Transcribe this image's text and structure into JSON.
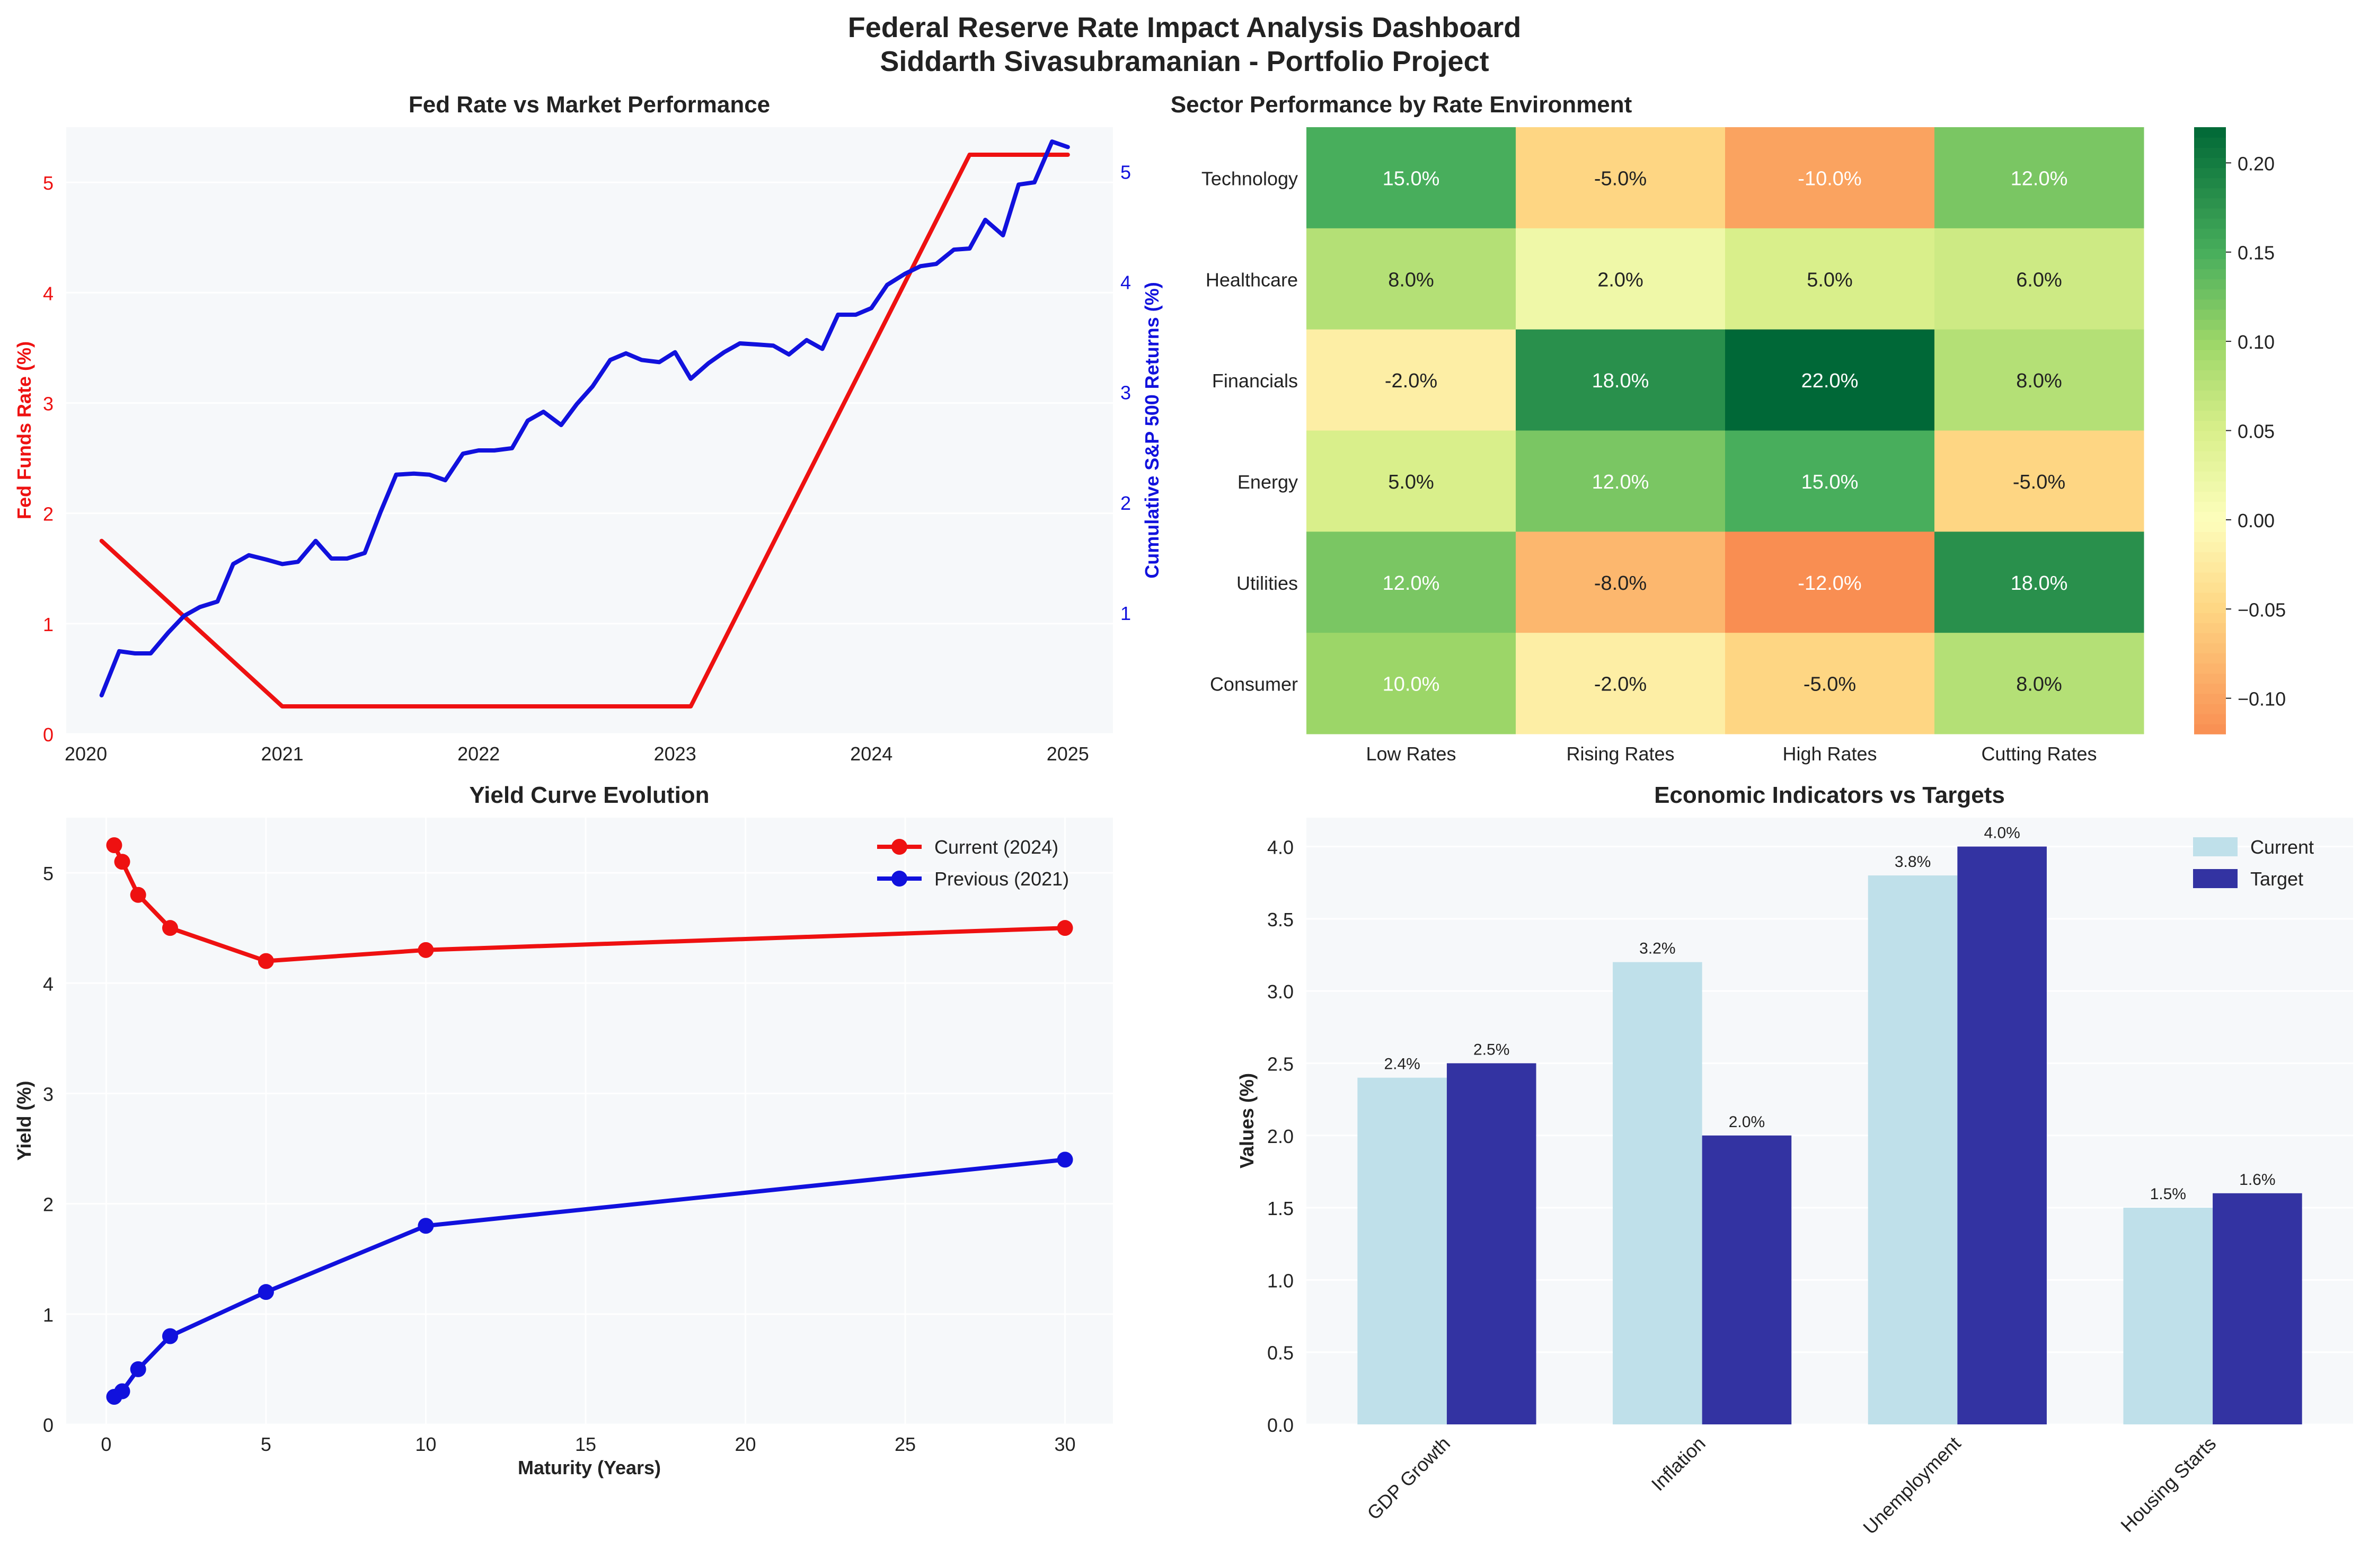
{
  "suptitle": {
    "line1": "Federal Reserve Rate Impact Analysis Dashboard",
    "line2": "Siddarth Sivasubramanian - Portfolio Project"
  },
  "colors": {
    "fed": "#ee1111",
    "sp": "#1111dd",
    "current": "#ee1111",
    "previous": "#1111dd",
    "bar_current": "#bfe0ea",
    "bar_target": "#3333a2",
    "panel_bg": "#f6f8fa",
    "grid": "#ffffff",
    "heat_low": "#f98e52",
    "heat_mid": "#fdfebc",
    "heat_high": "#006837"
  },
  "chart_data": [
    {
      "id": "fed-vs-market",
      "type": "line",
      "title": "Fed Rate vs Market Performance",
      "xlabel": "",
      "ylabel_left": "Fed Funds Rate (%)",
      "ylabel_right": "Cumulative S&P 500 Returns (%)",
      "xlim": [
        2019.9,
        2025.23
      ],
      "ylim_left": [
        0,
        5.5
      ],
      "ylim_right": [
        -0.1,
        5.4
      ],
      "xticks": [
        2020,
        2021,
        2022,
        2023,
        2024,
        2025
      ],
      "xtick_labels": [
        "2020",
        "2021",
        "2022",
        "2023",
        "2024",
        "2025"
      ],
      "yticks_left": [
        0,
        1,
        2,
        3,
        4,
        5
      ],
      "yticks_right": [
        1,
        2,
        3,
        4,
        5
      ],
      "series": [
        {
          "name": "Fed Funds Rate",
          "axis": "left",
          "x": [
            2020.08,
            2021.0,
            2023.08,
            2024.5,
            2025.0
          ],
          "y": [
            1.75,
            0.25,
            0.25,
            5.25,
            5.25
          ]
        },
        {
          "name": "Cumulative S&P 500 Returns",
          "axis": "right",
          "x": [
            2020.08,
            2020.17,
            2020.25,
            2020.33,
            2020.42,
            2020.5,
            2020.58,
            2020.67,
            2020.75,
            2020.83,
            2020.92,
            2021.0,
            2021.08,
            2021.17,
            2021.25,
            2021.33,
            2021.42,
            2021.5,
            2021.58,
            2021.67,
            2021.75,
            2021.83,
            2021.92,
            2022.0,
            2022.08,
            2022.17,
            2022.25,
            2022.33,
            2022.42,
            2022.5,
            2022.58,
            2022.67,
            2022.75,
            2022.83,
            2022.92,
            2023.0,
            2023.08,
            2023.17,
            2023.25,
            2023.33,
            2023.42,
            2023.5,
            2023.58,
            2023.67,
            2023.75,
            2023.83,
            2023.92,
            2024.0,
            2024.08,
            2024.17,
            2024.25,
            2024.33,
            2024.42,
            2024.5,
            2024.58,
            2024.67,
            2024.75,
            2024.83,
            2024.92,
            2025.0
          ],
          "y": [
            0.25,
            0.65,
            0.63,
            0.63,
            0.82,
            0.97,
            1.05,
            1.1,
            1.44,
            1.52,
            1.48,
            1.44,
            1.46,
            1.65,
            1.49,
            1.49,
            1.54,
            1.91,
            2.25,
            2.26,
            2.25,
            2.2,
            2.44,
            2.47,
            2.47,
            2.49,
            2.74,
            2.82,
            2.7,
            2.89,
            3.05,
            3.29,
            3.35,
            3.29,
            3.27,
            3.36,
            3.12,
            3.26,
            3.36,
            3.44,
            3.43,
            3.42,
            3.34,
            3.47,
            3.39,
            3.7,
            3.7,
            3.76,
            3.97,
            4.07,
            4.14,
            4.16,
            4.29,
            4.3,
            4.56,
            4.42,
            4.88,
            4.9,
            5.27,
            5.22
          ]
        }
      ]
    },
    {
      "id": "sector-heatmap",
      "type": "heatmap",
      "title": "Sector Performance by Rate Environment",
      "rows": [
        "Technology",
        "Healthcare",
        "Financials",
        "Energy",
        "Utilities",
        "Consumer"
      ],
      "cols": [
        "Low Rates",
        "Rising Rates",
        "High Rates",
        "Cutting Rates"
      ],
      "values": [
        [
          0.15,
          -0.05,
          -0.1,
          0.12
        ],
        [
          0.08,
          0.02,
          0.05,
          0.06
        ],
        [
          -0.02,
          0.18,
          0.22,
          0.08
        ],
        [
          0.05,
          0.12,
          0.15,
          -0.05
        ],
        [
          0.12,
          -0.08,
          -0.12,
          0.18
        ],
        [
          0.1,
          -0.02,
          -0.05,
          0.08
        ]
      ],
      "labels": [
        [
          "15.0%",
          "-5.0%",
          "-10.0%",
          "12.0%"
        ],
        [
          "8.0%",
          "2.0%",
          "5.0%",
          "6.0%"
        ],
        [
          "-2.0%",
          "18.0%",
          "22.0%",
          "8.0%"
        ],
        [
          "5.0%",
          "12.0%",
          "15.0%",
          "-5.0%"
        ],
        [
          "12.0%",
          "-8.0%",
          "-12.0%",
          "18.0%"
        ],
        [
          "10.0%",
          "-2.0%",
          "-5.0%",
          "8.0%"
        ]
      ],
      "vmin": -0.12,
      "vmax": 0.22,
      "colorbar_ticks": [
        -0.1,
        -0.05,
        0.0,
        0.05,
        0.1,
        0.15,
        0.2
      ],
      "colorbar_labels": [
        "−0.10",
        "−0.05",
        "0.00",
        "0.05",
        "0.10",
        "0.15",
        "0.20"
      ]
    },
    {
      "id": "yield-curve",
      "type": "line",
      "title": "Yield Curve Evolution",
      "xlabel": "Maturity (Years)",
      "ylabel": "Yield (%)",
      "xlim": [
        -1.25,
        31.5
      ],
      "ylim": [
        0,
        5.5
      ],
      "xticks": [
        0,
        5,
        10,
        15,
        20,
        25,
        30
      ],
      "xtick_labels": [
        "0",
        "5",
        "10",
        "15",
        "20",
        "25",
        "30"
      ],
      "yticks": [
        0,
        1,
        2,
        3,
        4,
        5
      ],
      "ytick_labels": [
        "0",
        "1",
        "2",
        "3",
        "4",
        "5"
      ],
      "legend_position": "top-right",
      "series": [
        {
          "name": "Current (2024)",
          "x": [
            0.25,
            0.5,
            1,
            2,
            5,
            10,
            30
          ],
          "y": [
            5.25,
            5.1,
            4.8,
            4.5,
            4.2,
            4.3,
            4.5
          ]
        },
        {
          "name": "Previous (2021)",
          "x": [
            0.25,
            0.5,
            1,
            2,
            5,
            10,
            30
          ],
          "y": [
            0.25,
            0.3,
            0.5,
            0.8,
            1.2,
            1.8,
            2.4
          ]
        }
      ]
    },
    {
      "id": "economic-indicators",
      "type": "bar",
      "title": "Economic Indicators vs Targets",
      "xlabel": "",
      "ylabel": "Values (%)",
      "categories": [
        "GDP Growth",
        "Inflation",
        "Unemployment",
        "Housing Starts"
      ],
      "ylim": [
        0,
        4.2
      ],
      "yticks": [
        0.0,
        0.5,
        1.0,
        1.5,
        2.0,
        2.5,
        3.0,
        3.5,
        4.0
      ],
      "ytick_labels": [
        "0.0",
        "0.5",
        "1.0",
        "1.5",
        "2.0",
        "2.5",
        "3.0",
        "3.5",
        "4.0"
      ],
      "legend_position": "top-right",
      "series": [
        {
          "name": "Current",
          "values": [
            2.4,
            3.2,
            3.8,
            1.5
          ],
          "labels": [
            "2.4%",
            "3.2%",
            "3.8%",
            "1.5%"
          ]
        },
        {
          "name": "Target",
          "values": [
            2.5,
            2.0,
            4.0,
            1.6
          ],
          "labels": [
            "2.5%",
            "2.0%",
            "4.0%",
            "1.6%"
          ]
        }
      ]
    }
  ]
}
